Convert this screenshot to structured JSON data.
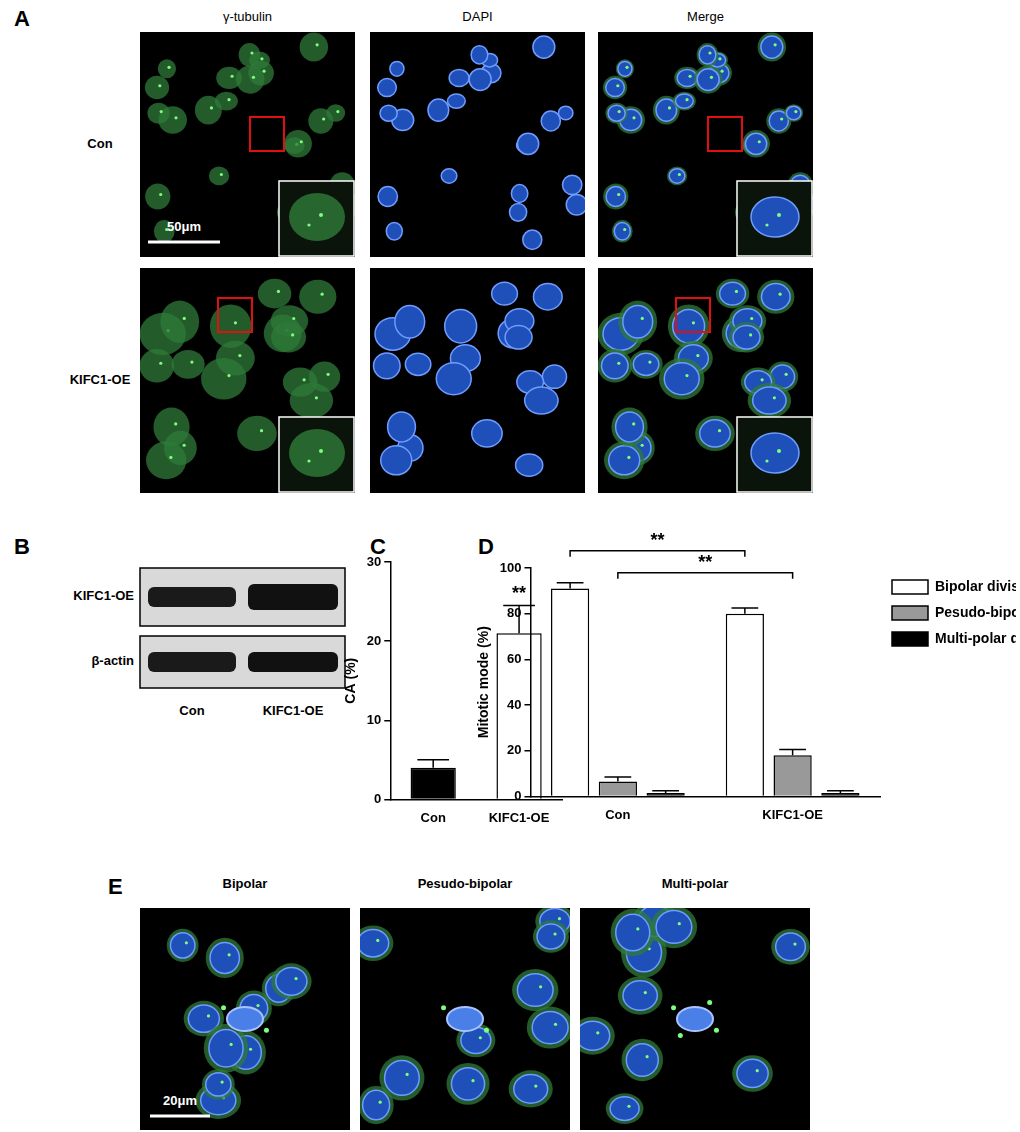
{
  "panel_a": {
    "label": "A",
    "columns": [
      "γ-tubulin",
      "DAPI",
      "Merge"
    ],
    "rows": [
      "Con",
      "KIFC1-OE"
    ],
    "scale_bar": "50μm"
  },
  "panel_b": {
    "label": "B",
    "bands": [
      "KIFC1-OE",
      "β-actin"
    ],
    "lanes": [
      "Con",
      "KIFC1-OE"
    ]
  },
  "chart_data": [
    {
      "label": "C",
      "type": "bar",
      "categories": [
        "Con",
        "KIFC1-OE"
      ],
      "values": [
        4,
        21
      ],
      "errors": [
        1,
        3.5
      ],
      "colors": [
        "#000000",
        "#ffffff"
      ],
      "y_label": "CA (%)",
      "ylim": [
        0,
        30
      ],
      "yticks": [
        0,
        10,
        20,
        30
      ],
      "grid": false,
      "annotations": [
        {
          "text": "**",
          "category": "KIFC1-OE"
        }
      ]
    },
    {
      "label": "D",
      "type": "bar",
      "categories": [
        "Con",
        "KIFC1-OE"
      ],
      "series": [
        {
          "name": "Bipolar division",
          "color": "#ffffff",
          "values": [
            91,
            80
          ],
          "errors": [
            2.5,
            2.5
          ]
        },
        {
          "name": "Pesudo-bipolar division",
          "color": "#999999",
          "values": [
            6.5,
            18
          ],
          "errors": [
            2,
            2.5
          ]
        },
        {
          "name": "Multi-polar division",
          "color": "#000000",
          "values": [
            1.5,
            1.5
          ],
          "errors": [
            1,
            1
          ]
        }
      ],
      "y_label": "Mitotic mode (%)",
      "ylim": [
        0,
        100
      ],
      "yticks": [
        0,
        20,
        40,
        60,
        80,
        100
      ],
      "grid": false,
      "legend": "right",
      "annotations": [
        {
          "text": "**",
          "series": "Bipolar division",
          "between": [
            "Con",
            "KIFC1-OE"
          ]
        },
        {
          "text": "**",
          "series": "Pesudo-bipolar division",
          "between": [
            "Con",
            "KIFC1-OE"
          ]
        }
      ]
    }
  ],
  "panel_e": {
    "label": "E",
    "columns": [
      "Bipolar",
      "Pesudo-bipolar",
      "Multi-polar"
    ],
    "scale_bar": "20μm"
  }
}
